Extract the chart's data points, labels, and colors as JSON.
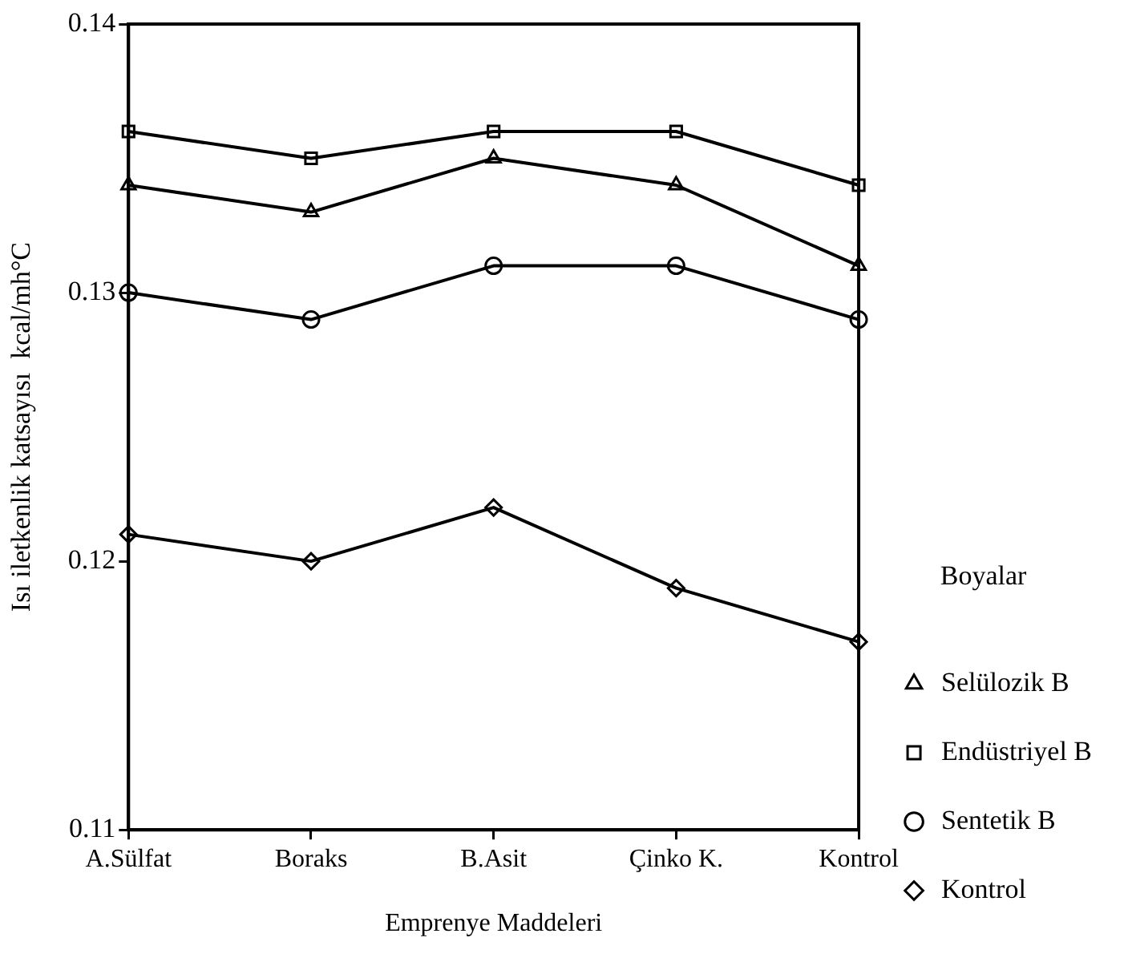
{
  "chart_data": {
    "type": "line",
    "xlabel": "Emprenye Maddeleri",
    "ylabel": "Isı iletkenlik katsayısı  kcal/mh°C",
    "legend_title": "Boyalar",
    "categories": [
      "A.Sülfat",
      "Boraks",
      "B.Asit",
      "Çinko K.",
      "Kontrol"
    ],
    "ylim": [
      0.11,
      0.14
    ],
    "yticks": [
      0.11,
      0.12,
      0.13,
      0.14
    ],
    "grid": false,
    "legend": "right",
    "line_style": "solid",
    "series": [
      {
        "name": "Selülozik B",
        "color": "#000000",
        "marker": "triangle",
        "values": [
          0.134,
          0.133,
          0.135,
          0.134,
          0.131
        ]
      },
      {
        "name": "Endüstriyel B",
        "color": "#000000",
        "marker": "square",
        "values": [
          0.136,
          0.135,
          0.136,
          0.136,
          0.134
        ]
      },
      {
        "name": "Sentetik B",
        "color": "#000000",
        "marker": "circle",
        "values": [
          0.13,
          0.129,
          0.131,
          0.131,
          0.129
        ]
      },
      {
        "name": "Kontrol",
        "color": "#000000",
        "marker": "diamond",
        "values": [
          0.121,
          0.12,
          0.122,
          0.119,
          0.117
        ]
      }
    ]
  }
}
